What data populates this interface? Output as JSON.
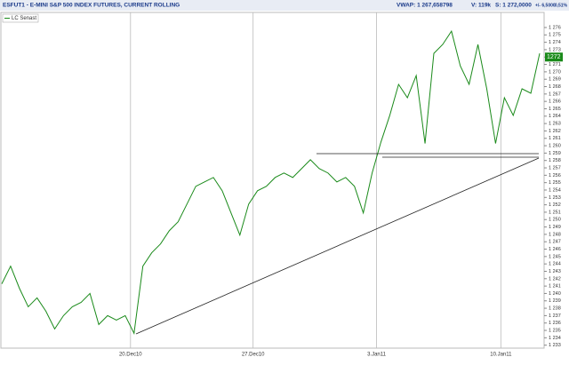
{
  "header": {
    "title": "ESFUT1 - E-MINI S&P 500 INDEX FUTURES, CURRENT ROLLING",
    "stats": [
      "VWAP: 1 267,658798",
      "V: 119k",
      "S: 1 272,0000",
      "+/- 6,5000",
      "0,51%"
    ]
  },
  "chart_data": {
    "type": "line",
    "grid": true,
    "x": [
      0,
      1,
      2,
      3,
      4,
      5,
      6,
      7,
      8,
      9,
      10,
      11,
      12,
      13,
      14,
      15,
      16,
      17,
      18,
      19,
      20,
      21,
      22,
      23,
      24,
      25,
      26,
      27,
      28,
      29,
      30,
      31,
      32,
      33,
      34,
      35,
      36,
      37,
      38,
      39,
      40,
      41,
      42,
      43,
      44,
      45,
      46,
      47,
      48,
      49,
      50,
      51,
      52,
      53,
      54,
      55,
      56,
      57,
      58,
      59,
      60,
      61
    ],
    "series": [
      {
        "name": "LC Senast",
        "color": "#1a8a1a",
        "values": [
          1241.3,
          1243.7,
          1240.7,
          1238.2,
          1239.4,
          1237.6,
          1235.2,
          1237,
          1238.2,
          1238.8,
          1240,
          1235.8,
          1237,
          1236.4,
          1237,
          1234.6,
          1243.7,
          1245.5,
          1246.7,
          1248.5,
          1249.7,
          1252.1,
          1254.5,
          1255.1,
          1255.7,
          1253.9,
          1250.9,
          1247.9,
          1252.1,
          1253.9,
          1254.5,
          1255.7,
          1256.3,
          1255.7,
          1256.9,
          1258.1,
          1256.9,
          1256.3,
          1255.1,
          1255.7,
          1254.5,
          1250.9,
          1256.3,
          1260.5,
          1264.1,
          1268.3,
          1266.5,
          1269.5,
          1260.3,
          1272.5,
          1273.7,
          1275.5,
          1270.8,
          1268.3,
          1273.7,
          1267.7,
          1260.3,
          1266.5,
          1264.1,
          1267.7,
          1267.1,
          1272.5
        ]
      }
    ],
    "xlim": [
      0,
      61
    ],
    "xticks": [
      {
        "value": 14.6,
        "label": "20.Dec10"
      },
      {
        "value": 28.5,
        "label": "27.Dec10"
      },
      {
        "value": 42.5,
        "label": "3.Jan11"
      },
      {
        "value": 56.6,
        "label": "10.Jan11"
      }
    ],
    "ylim": [
      1232.6,
      1277.8
    ],
    "yticks": [
      {
        "value": 1233,
        "label": "1 233"
      },
      {
        "value": 1234,
        "label": "1 234"
      },
      {
        "value": 1235,
        "label": "1 235"
      },
      {
        "value": 1236,
        "label": "1 236"
      },
      {
        "value": 1237,
        "label": "1 237"
      },
      {
        "value": 1238,
        "label": "1 238"
      },
      {
        "value": 1239,
        "label": "1 239"
      },
      {
        "value": 1240,
        "label": "1 240"
      },
      {
        "value": 1241,
        "label": "1 241"
      },
      {
        "value": 1242,
        "label": "1 242"
      },
      {
        "value": 1243,
        "label": "1 243"
      },
      {
        "value": 1244,
        "label": "1 244"
      },
      {
        "value": 1245,
        "label": "1 245"
      },
      {
        "value": 1246,
        "label": "1 246"
      },
      {
        "value": 1247,
        "label": "1 247"
      },
      {
        "value": 1248,
        "label": "1 248"
      },
      {
        "value": 1249,
        "label": "1 249"
      },
      {
        "value": 1250,
        "label": "1 250"
      },
      {
        "value": 1251,
        "label": "1 251"
      },
      {
        "value": 1252,
        "label": "1 252"
      },
      {
        "value": 1253,
        "label": "1 253"
      },
      {
        "value": 1254,
        "label": "1 254"
      },
      {
        "value": 1255,
        "label": "1 255"
      },
      {
        "value": 1256,
        "label": "1 256"
      },
      {
        "value": 1257,
        "label": "1 257"
      },
      {
        "value": 1258,
        "label": "1 258"
      },
      {
        "value": 1259,
        "label": "1 259"
      },
      {
        "value": 1260,
        "label": "1 260"
      },
      {
        "value": 1261,
        "label": "1 261"
      },
      {
        "value": 1262,
        "label": "1 262"
      },
      {
        "value": 1263,
        "label": "1 263"
      },
      {
        "value": 1264,
        "label": "1 264"
      },
      {
        "value": 1265,
        "label": "1 265"
      },
      {
        "value": 1266,
        "label": "1 266"
      },
      {
        "value": 1267,
        "label": "1 267"
      },
      {
        "value": 1268,
        "label": "1 268"
      },
      {
        "value": 1269,
        "label": "1 269"
      },
      {
        "value": 1270,
        "label": "1 270"
      },
      {
        "value": 1271,
        "label": "1 271"
      },
      {
        "value": 1272,
        "label": "1 272"
      },
      {
        "value": 1273,
        "label": "1 273"
      },
      {
        "value": 1274,
        "label": "1 274"
      },
      {
        "value": 1275,
        "label": "1 275"
      },
      {
        "value": 1276,
        "label": "1 276"
      }
    ],
    "last_price": {
      "value": 1272,
      "label": "1272"
    }
  }
}
